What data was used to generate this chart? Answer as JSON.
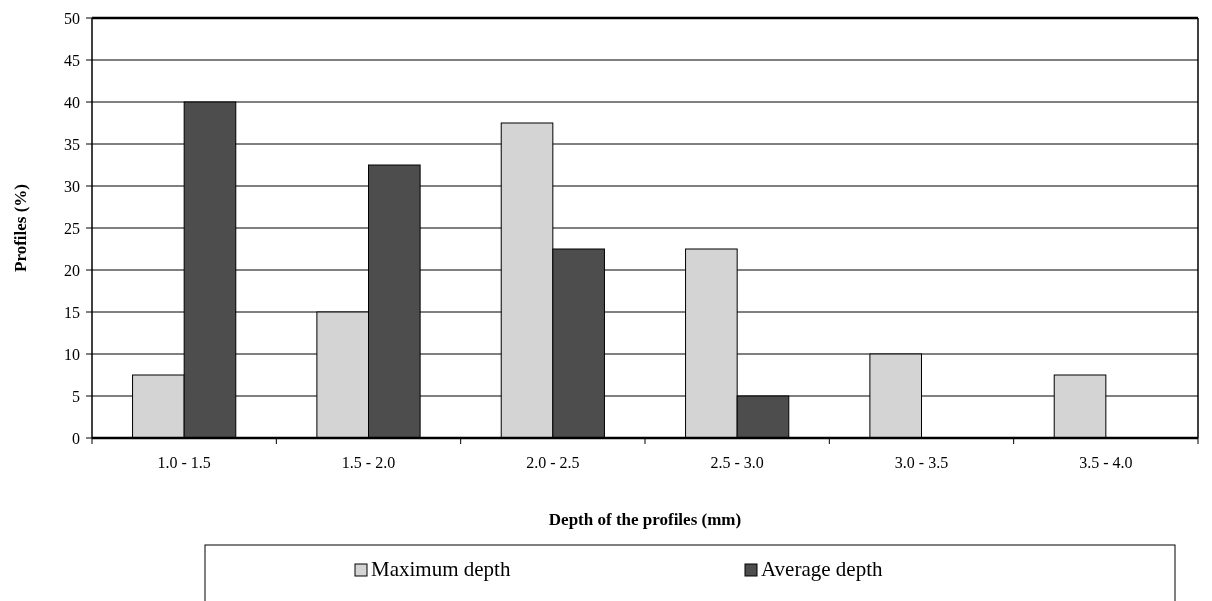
{
  "chart_data": {
    "type": "bar",
    "xlabel": "Depth of the profiles (mm)",
    "ylabel": "Profiles (%)",
    "categories": [
      "1.0 - 1.5",
      "1.5 - 2.0",
      "2.0 - 2.5",
      "2.5 - 3.0",
      "3.0 - 3.5",
      "3.5 - 4.0"
    ],
    "series": [
      {
        "name": "Maximum depth",
        "color": "#d4d4d4",
        "values": [
          7.5,
          15,
          37.5,
          22.5,
          10,
          7.5
        ]
      },
      {
        "name": "Average depth",
        "color": "#4d4d4d",
        "values": [
          40,
          32.5,
          22.5,
          5,
          0,
          0
        ]
      }
    ],
    "ylim": [
      0,
      50
    ],
    "yticks": [
      0,
      5,
      10,
      15,
      20,
      25,
      30,
      35,
      40,
      45,
      50
    ],
    "grid": "y",
    "legend": "bottom"
  }
}
